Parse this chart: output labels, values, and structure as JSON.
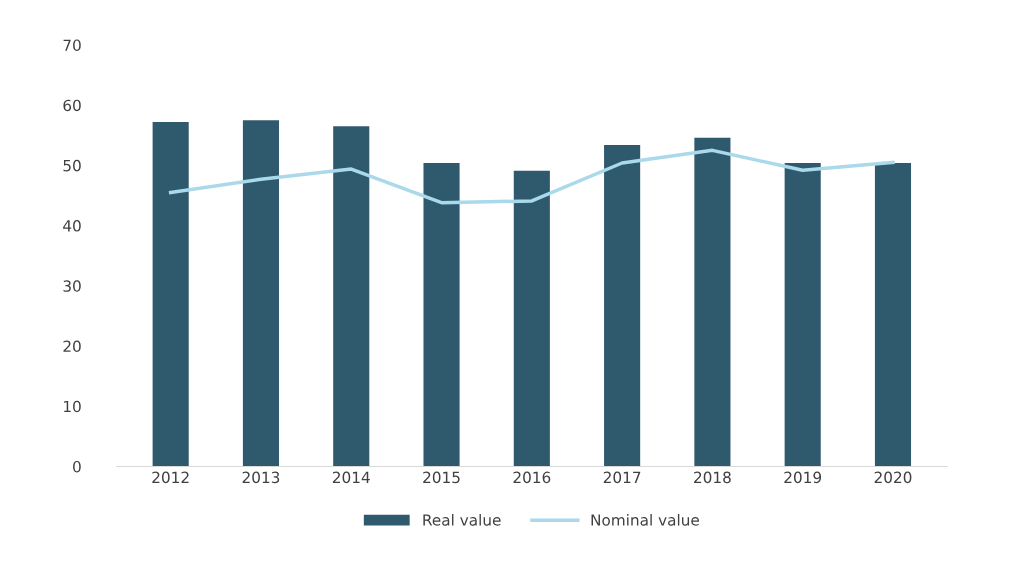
{
  "chart_data": {
    "type": "bar",
    "categories": [
      "2012",
      "2013",
      "2014",
      "2015",
      "2016",
      "2017",
      "2018",
      "2019",
      "2020"
    ],
    "series": [
      {
        "name": "Real value",
        "color": "#2f5a6d",
        "values": [
          57.2,
          57.5,
          56.5,
          50.4,
          49.1,
          53.4,
          54.6,
          50.4,
          50.4
        ]
      },
      {
        "name": "Nominal value",
        "type": "line",
        "color": "#a9d9ea",
        "values": [
          45.5,
          47.7,
          49.4,
          43.8,
          44.1,
          50.4,
          52.5,
          49.2,
          50.5
        ]
      }
    ],
    "ylim": [
      0,
      70
    ],
    "yticks": [
      0,
      10,
      20,
      30,
      40,
      50,
      60,
      70
    ],
    "grid": false,
    "legend": "bottom"
  }
}
